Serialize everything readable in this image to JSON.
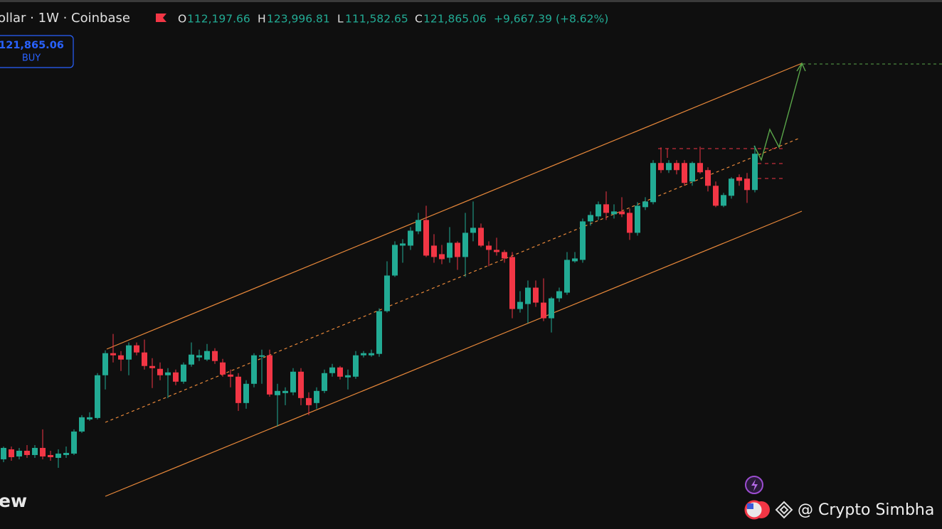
{
  "header": {
    "symbol": "ollar · 1W · Coinbase",
    "o_label": "O",
    "open": "112,197.66",
    "h_label": "H",
    "high": "123,996.81",
    "l_label": "L",
    "low": "111,582.65",
    "c_label": "C",
    "close": "121,865.06",
    "change": "+9,667.39 (+8.62%)"
  },
  "badge": {
    "price": "121,865.06",
    "side": "BUY"
  },
  "watermark": {
    "brand": "ew",
    "author": "@ Crypto Simbha"
  },
  "chart_data": {
    "type": "candlestick",
    "up_color": "#22ab94",
    "down_color": "#f23645",
    "open": [
      40360,
      43020,
      41120,
      42640,
      41500,
      43400,
      41500,
      40740,
      41500,
      41880,
      47770,
      51000,
      51380,
      62780,
      68670,
      68100,
      66960,
      70760,
      68860,
      65250,
      64490,
      62780,
      63540,
      61070,
      65630,
      67530,
      66960,
      69240,
      66200,
      62970,
      62400,
      55370,
      60500,
      67720,
      68100,
      57460,
      58030,
      58220,
      63730,
      56700,
      55370,
      58600,
      63350,
      64870,
      62210,
      62400,
      68100,
      68100,
      68480,
      79880,
      89380,
      97360,
      97360,
      101160,
      104200,
      97360,
      95080,
      94130,
      98120,
      94320,
      100780,
      102110,
      97360,
      96220,
      95650,
      94320,
      80450,
      81780,
      86150,
      82160,
      77980,
      83300,
      84820,
      93180,
      93560,
      103820,
      105150,
      108380,
      105720,
      106480,
      106100,
      100780,
      107620,
      108950,
      119400,
      117500,
      119400,
      119400,
      114460,
      119400,
      117500,
      113320,
      108000,
      110660,
      115600,
      115220,
      112197.66
    ],
    "close": [
      43400,
      40930,
      42640,
      41500,
      43400,
      41120,
      40930,
      41880,
      42070,
      47770,
      51570,
      51570,
      62780,
      68670,
      68100,
      66960,
      70760,
      68860,
      65250,
      64680,
      62780,
      63540,
      61070,
      65630,
      68290,
      68100,
      69240,
      66580,
      62970,
      62400,
      55370,
      60500,
      68100,
      68100,
      57650,
      58600,
      58600,
      63730,
      56700,
      54800,
      58600,
      63350,
      64870,
      62400,
      62780,
      68100,
      68670,
      68670,
      79880,
      89380,
      97550,
      97930,
      101350,
      104200,
      94700,
      94320,
      93750,
      98120,
      94320,
      100780,
      102110,
      97360,
      96220,
      95650,
      93940,
      80450,
      82350,
      86150,
      82160,
      77980,
      83300,
      85200,
      93560,
      93940,
      103820,
      105530,
      108380,
      106100,
      106480,
      105720,
      100780,
      108000,
      109140,
      119400,
      117500,
      119400,
      117500,
      114080,
      119400,
      116930,
      113320,
      108000,
      110850,
      115220,
      114650,
      112180,
      121865.06
    ],
    "high": [
      43780,
      43780,
      43400,
      44160,
      44160,
      48340,
      42640,
      43020,
      43780,
      48340,
      52140,
      52900,
      63350,
      69430,
      73800,
      69240,
      71520,
      71520,
      72280,
      67340,
      66200,
      64680,
      64300,
      66200,
      71520,
      69620,
      71140,
      70000,
      67150,
      64300,
      63350,
      61450,
      68670,
      69620,
      69620,
      60500,
      59550,
      64680,
      64680,
      58220,
      59550,
      64300,
      65820,
      65250,
      64300,
      69240,
      69240,
      69620,
      80640,
      93180,
      98500,
      99070,
      102300,
      106100,
      108000,
      100400,
      97550,
      102300,
      98500,
      106100,
      109140,
      103250,
      98500,
      99450,
      96220,
      95650,
      85200,
      88050,
      88050,
      88620,
      83680,
      86150,
      95650,
      95650,
      104580,
      106480,
      109140,
      111800,
      108380,
      110280,
      107240,
      108950,
      110280,
      120160,
      123580,
      120160,
      120160,
      120160,
      119780,
      123770,
      118260,
      114460,
      111420,
      115600,
      116360,
      116740,
      123996.81
    ],
    "low": [
      39600,
      39980,
      40360,
      40740,
      40740,
      40360,
      39980,
      38080,
      40740,
      41500,
      47390,
      50620,
      51000,
      58980,
      66200,
      63920,
      62780,
      68100,
      64300,
      59360,
      61450,
      56700,
      60120,
      60500,
      65060,
      66580,
      66580,
      65820,
      62400,
      59550,
      53280,
      53850,
      59550,
      60500,
      57080,
      49100,
      54800,
      57460,
      54800,
      52140,
      53850,
      58030,
      62400,
      61640,
      58980,
      61830,
      67530,
      67720,
      67720,
      79500,
      89000,
      92800,
      96220,
      100400,
      94320,
      92800,
      92420,
      92800,
      90900,
      89000,
      98500,
      96980,
      91850,
      94700,
      92800,
      77980,
      79500,
      76650,
      81020,
      77220,
      74180,
      82350,
      84250,
      92800,
      92800,
      102680,
      104200,
      104200,
      104580,
      104960,
      98880,
      100020,
      106860,
      108380,
      116740,
      116740,
      116360,
      113320,
      113320,
      116550,
      111800,
      107620,
      107620,
      109900,
      113320,
      108760,
      111582.65
    ]
  }
}
